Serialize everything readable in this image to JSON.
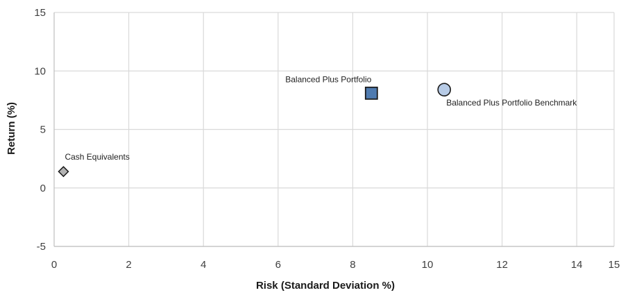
{
  "chart_data": {
    "type": "scatter",
    "title": "",
    "xlabel": "Risk (Standard Deviation %)",
    "ylabel": "Return (%)",
    "xlim": [
      0,
      15
    ],
    "ylim": [
      -5,
      15
    ],
    "x_ticks": [
      0,
      2,
      4,
      6,
      8,
      10,
      12,
      14,
      15
    ],
    "y_ticks": [
      -5,
      0,
      5,
      10,
      15
    ],
    "grid": true,
    "legend": "none",
    "points": [
      {
        "label": "Cash Equivalents",
        "x": 0.25,
        "y": 1.4,
        "marker": "diamond",
        "color": "#b3b3b3"
      },
      {
        "label": "Balanced Plus Portfolio",
        "x": 8.5,
        "y": 8.1,
        "marker": "square",
        "color": "#4f7bb0"
      },
      {
        "label": "Balanced Plus Portfolio Benchmark",
        "x": 10.45,
        "y": 8.4,
        "marker": "circle",
        "color": "#b7cbe6"
      }
    ],
    "colors": {
      "grid": "#d9d9d9",
      "axis": "#bfbfbf",
      "marker_stroke": "#1a1a1a"
    }
  }
}
